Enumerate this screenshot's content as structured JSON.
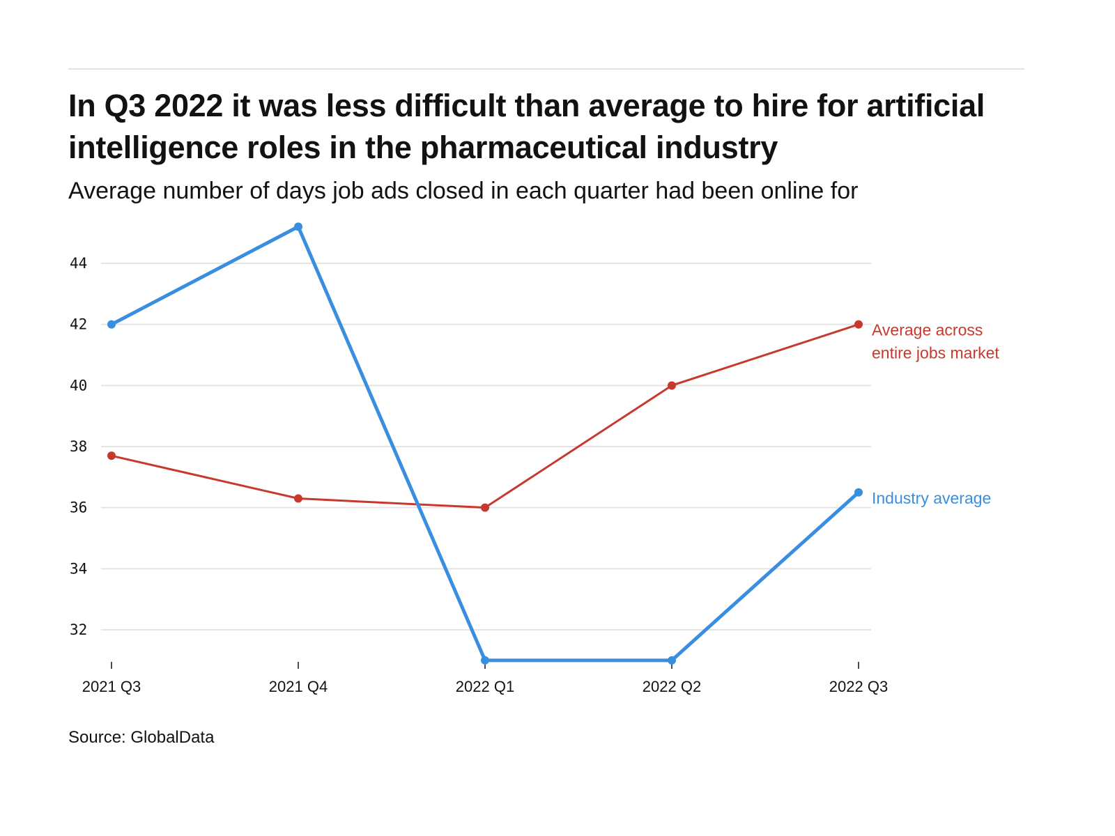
{
  "header": {
    "title": "In Q3 2022 it was less difficult than average to hire for artificial intelligence roles in the pharmaceutical industry",
    "subtitle": "Average number of days job ads closed in each quarter had been online for"
  },
  "footer": {
    "source": "Source: GlobalData"
  },
  "colors": {
    "industry": "#3a8ee0",
    "market": "#c8392d",
    "grid": "#e4e4e4",
    "text": "#121212"
  },
  "chart_data": {
    "type": "line",
    "title": "In Q3 2022 it was less difficult than average to hire for artificial intelligence roles in the pharmaceutical industry",
    "subtitle": "Average number of days job ads closed in each quarter had been online for",
    "xlabel": "",
    "ylabel": "",
    "categories": [
      "2021 Q3",
      "2021 Q4",
      "2022 Q1",
      "2022 Q2",
      "2022 Q3"
    ],
    "yticks": [
      32,
      34,
      36,
      38,
      40,
      42,
      44
    ],
    "ylim": [
      31,
      45.2
    ],
    "grid": true,
    "legend": "inline-right",
    "series": [
      {
        "name": "Industry average",
        "label_lines": [
          "Industry average"
        ],
        "color": "#3a8ee0",
        "values": [
          42.0,
          45.2,
          31.0,
          31.0,
          36.5
        ]
      },
      {
        "name": "Average across entire jobs market",
        "label_lines": [
          "Average across",
          "entire jobs market"
        ],
        "color": "#c8392d",
        "values": [
          37.7,
          36.3,
          36.0,
          40.0,
          42.0
        ]
      }
    ],
    "source": "Source: GlobalData"
  }
}
